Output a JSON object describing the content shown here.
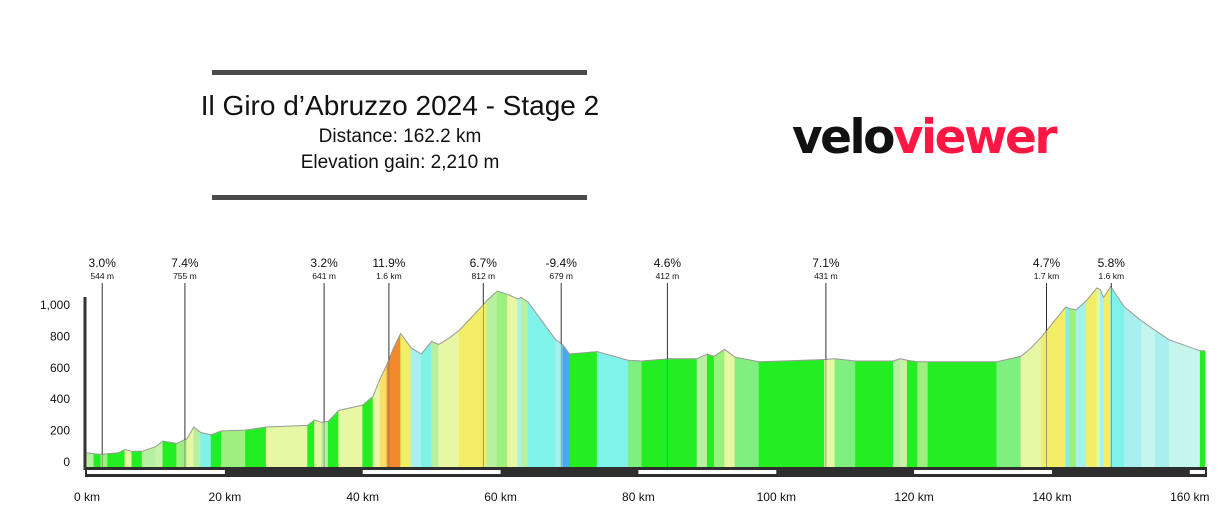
{
  "header": {
    "title": "Il Giro d’Abruzzo 2024 - Stage 2",
    "distance": "Distance: 162.2 km",
    "elevation_gain": "Elevation gain: 2,210 m"
  },
  "logo": {
    "part1": "velo",
    "part2": "viewer",
    "color1": "#111111",
    "color2": "#ff1744"
  },
  "chart_data": {
    "type": "area",
    "title": "Il Giro d’Abruzzo 2024 - Stage 2",
    "xlabel": "",
    "ylabel": "",
    "x_unit": "km",
    "xlim": [
      0,
      162.2
    ],
    "ylim": [
      0,
      1100
    ],
    "x_ticks": [
      "0 km",
      "20 km",
      "40 km",
      "60 km",
      "80 km",
      "100 km",
      "120 km",
      "140 km",
      "160 km"
    ],
    "y_ticks": [
      "0",
      "200",
      "400",
      "600",
      "800",
      "1,000"
    ],
    "profile": [
      {
        "x": 0,
        "y": 90,
        "c": "#b6f0a0"
      },
      {
        "x": 1,
        "y": 85,
        "c": "#22ee22"
      },
      {
        "x": 2,
        "y": 80,
        "c": "#9ef07e"
      },
      {
        "x": 3,
        "y": 85,
        "c": "#22ee22"
      },
      {
        "x": 4.5,
        "y": 90,
        "c": "#22ee22"
      },
      {
        "x": 5.5,
        "y": 110,
        "c": "#e8f7a4"
      },
      {
        "x": 6.5,
        "y": 100,
        "c": "#22ee22"
      },
      {
        "x": 8,
        "y": 100,
        "c": "#b6f0a0"
      },
      {
        "x": 10,
        "y": 130,
        "c": "#c9f2a8"
      },
      {
        "x": 11,
        "y": 165,
        "c": "#22ee22"
      },
      {
        "x": 13,
        "y": 150,
        "c": "#9ef07e"
      },
      {
        "x": 14.5,
        "y": 180,
        "c": "#e8f7a4"
      },
      {
        "x": 15.5,
        "y": 255,
        "c": "#b6f0a0"
      },
      {
        "x": 16.5,
        "y": 220,
        "c": "#7ff2ea"
      },
      {
        "x": 18,
        "y": 205,
        "c": "#22ee22"
      },
      {
        "x": 19.5,
        "y": 230,
        "c": "#9ef07e"
      },
      {
        "x": 23,
        "y": 235,
        "c": "#22ee22"
      },
      {
        "x": 26,
        "y": 255,
        "c": "#e8f7a4"
      },
      {
        "x": 32,
        "y": 265,
        "c": "#22ee22"
      },
      {
        "x": 33,
        "y": 300,
        "c": "#e8f7a4"
      },
      {
        "x": 34,
        "y": 285,
        "c": "#b6f0a0"
      },
      {
        "x": 35,
        "y": 290,
        "c": "#22ee22"
      },
      {
        "x": 36.5,
        "y": 360,
        "c": "#e8f7a4"
      },
      {
        "x": 40,
        "y": 395,
        "c": "#22ee22"
      },
      {
        "x": 41.5,
        "y": 450,
        "c": "#e8f7a4"
      },
      {
        "x": 42.5,
        "y": 560,
        "c": "#f7e06a"
      },
      {
        "x": 43.5,
        "y": 650,
        "c": "#f08a2c"
      },
      {
        "x": 44.5,
        "y": 760,
        "c": "#f08a2c"
      },
      {
        "x": 45.5,
        "y": 850,
        "c": "#f2ee66"
      },
      {
        "x": 47,
        "y": 760,
        "c": "#a8f0ef"
      },
      {
        "x": 48.5,
        "y": 720,
        "c": "#7ff2ea"
      },
      {
        "x": 50,
        "y": 800,
        "c": "#b6f0a0"
      },
      {
        "x": 51,
        "y": 780,
        "c": "#e8f7a4"
      },
      {
        "x": 52.5,
        "y": 820,
        "c": "#e8f7a4"
      },
      {
        "x": 54,
        "y": 870,
        "c": "#f2ee66"
      },
      {
        "x": 57,
        "y": 1010,
        "c": "#f2ee66"
      },
      {
        "x": 58,
        "y": 1060,
        "c": "#b6f0a0"
      },
      {
        "x": 59.5,
        "y": 1120,
        "c": "#9ef07e"
      },
      {
        "x": 61,
        "y": 1100,
        "c": "#e8f7a4"
      },
      {
        "x": 62.5,
        "y": 1070,
        "c": "#a8f0ef"
      },
      {
        "x": 63,
        "y": 1080,
        "c": "#b6f0a0"
      },
      {
        "x": 64,
        "y": 1050,
        "c": "#7ff2ea"
      },
      {
        "x": 68,
        "y": 810,
        "c": "#a8f0ef"
      },
      {
        "x": 69,
        "y": 780,
        "c": "#4aa8f0"
      },
      {
        "x": 70,
        "y": 720,
        "c": "#22ee22"
      },
      {
        "x": 74,
        "y": 735,
        "c": "#7ff2ea"
      },
      {
        "x": 78.5,
        "y": 680,
        "c": "#7fef7f"
      },
      {
        "x": 80.5,
        "y": 675,
        "c": "#22ee22"
      },
      {
        "x": 84.5,
        "y": 690,
        "c": "#22ee22"
      },
      {
        "x": 88.5,
        "y": 690,
        "c": "#b6f0a0"
      },
      {
        "x": 90,
        "y": 720,
        "c": "#22ee22"
      },
      {
        "x": 91,
        "y": 705,
        "c": "#9ef07e"
      },
      {
        "x": 92.5,
        "y": 750,
        "c": "#e8f7a4"
      },
      {
        "x": 94,
        "y": 700,
        "c": "#7fef7f"
      },
      {
        "x": 97.5,
        "y": 670,
        "c": "#22ee22"
      },
      {
        "x": 107,
        "y": 685,
        "c": "#e8f7a4"
      },
      {
        "x": 108.5,
        "y": 690,
        "c": "#7fef7f"
      },
      {
        "x": 111.5,
        "y": 675,
        "c": "#22ee22"
      },
      {
        "x": 117,
        "y": 675,
        "c": "#b6f0a0"
      },
      {
        "x": 118,
        "y": 690,
        "c": "#c9f2a8"
      },
      {
        "x": 119,
        "y": 680,
        "c": "#22ee22"
      },
      {
        "x": 120.5,
        "y": 670,
        "c": "#9ef07e"
      },
      {
        "x": 122,
        "y": 670,
        "c": "#22ee22"
      },
      {
        "x": 132,
        "y": 670,
        "c": "#7fef7f"
      },
      {
        "x": 135.5,
        "y": 705,
        "c": "#e8f7a4"
      },
      {
        "x": 137,
        "y": 760,
        "c": "#e8f7a4"
      },
      {
        "x": 138.5,
        "y": 830,
        "c": "#f2ee66"
      },
      {
        "x": 142,
        "y": 1020,
        "c": "#7ff2ea"
      },
      {
        "x": 142.5,
        "y": 1010,
        "c": "#9ef07e"
      },
      {
        "x": 143.5,
        "y": 1000,
        "c": "#a8f0ef"
      },
      {
        "x": 145,
        "y": 1060,
        "c": "#f2ee66"
      },
      {
        "x": 146.5,
        "y": 1140,
        "c": "#e8f7a4"
      },
      {
        "x": 147,
        "y": 1130,
        "c": "#a8f0ef"
      },
      {
        "x": 147.5,
        "y": 1080,
        "c": "#f2ee66"
      },
      {
        "x": 148.5,
        "y": 1150,
        "c": "#7ff2ea"
      },
      {
        "x": 150.5,
        "y": 1020,
        "c": "#a8f0ef"
      },
      {
        "x": 153,
        "y": 930,
        "c": "#c6f5ee"
      },
      {
        "x": 155,
        "y": 870,
        "c": "#a8f0ef"
      },
      {
        "x": 157,
        "y": 810,
        "c": "#c6f5ee"
      },
      {
        "x": 161.5,
        "y": 740,
        "c": "#22ee22"
      },
      {
        "x": 162.2,
        "y": 740,
        "c": null
      }
    ],
    "annotations": [
      {
        "x": 2.2,
        "label": "3.0%",
        "sub": "544 m"
      },
      {
        "x": 14.2,
        "label": "7.4%",
        "sub": "755 m"
      },
      {
        "x": 34.4,
        "label": "3.2%",
        "sub": "641 m"
      },
      {
        "x": 43.8,
        "label": "11.9%",
        "sub": "1.6 km"
      },
      {
        "x": 57.5,
        "label": "6.7%",
        "sub": "812 m"
      },
      {
        "x": 68.8,
        "label": "-9.4%",
        "sub": "679 m"
      },
      {
        "x": 84.2,
        "label": "4.6%",
        "sub": "412 m"
      },
      {
        "x": 107.2,
        "label": "7.1%",
        "sub": "431 m"
      },
      {
        "x": 139.2,
        "label": "4.7%",
        "sub": "1.7 km"
      },
      {
        "x": 148.6,
        "label": "5.8%",
        "sub": "1.6 km"
      }
    ]
  }
}
